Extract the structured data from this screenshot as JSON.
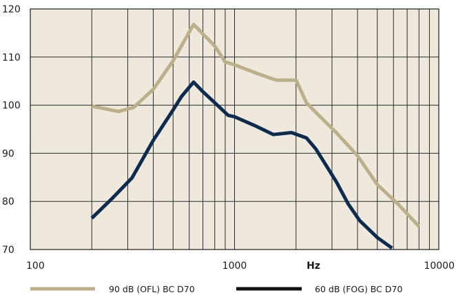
{
  "chart_data": {
    "type": "line",
    "title": "",
    "xlabel": "Hz",
    "ylabel": "",
    "x_scale": "log",
    "xlim": [
      100,
      10000
    ],
    "ylim": [
      70,
      120
    ],
    "x_ticks": [
      {
        "value": 100,
        "label": "100"
      },
      {
        "value": 1000,
        "label": "1000"
      },
      {
        "value": 10000,
        "label": "10000"
      }
    ],
    "y_ticks": [
      70,
      80,
      90,
      100,
      110,
      120
    ],
    "grid": true,
    "background": "#eee9dc",
    "legend_position": "bottom",
    "series": [
      {
        "name": "90 dB (OFL) BC D70",
        "color": "#bcb08a",
        "points": [
          [
            200,
            99.8
          ],
          [
            270,
            98.7
          ],
          [
            320,
            99.5
          ],
          [
            400,
            103.3
          ],
          [
            500,
            109.2
          ],
          [
            630,
            116.8
          ],
          [
            700,
            114.8
          ],
          [
            800,
            112.3
          ],
          [
            900,
            109.0
          ],
          [
            1000,
            108.4
          ],
          [
            1250,
            106.8
          ],
          [
            1600,
            105.2
          ],
          [
            2000,
            105.2
          ],
          [
            2250,
            100.5
          ],
          [
            2500,
            98.5
          ],
          [
            3150,
            94.3
          ],
          [
            4000,
            89.5
          ],
          [
            5000,
            83.5
          ],
          [
            6300,
            79.5
          ],
          [
            8000,
            74.8
          ]
        ]
      },
      {
        "name": "60 dB (FOG) BC D70",
        "color": "#0d2b4e",
        "points": [
          [
            200,
            76.5
          ],
          [
            250,
            80.5
          ],
          [
            315,
            84.9
          ],
          [
            400,
            92.7
          ],
          [
            500,
            99.0
          ],
          [
            550,
            101.8
          ],
          [
            630,
            104.8
          ],
          [
            700,
            102.8
          ],
          [
            800,
            100.5
          ],
          [
            930,
            97.9
          ],
          [
            1000,
            97.6
          ],
          [
            1250,
            95.8
          ],
          [
            1550,
            93.9
          ],
          [
            1900,
            94.3
          ],
          [
            2250,
            93.2
          ],
          [
            2500,
            90.9
          ],
          [
            3150,
            84.1
          ],
          [
            3600,
            79.5
          ],
          [
            4100,
            76.0
          ],
          [
            5000,
            72.5
          ],
          [
            5900,
            70.3
          ]
        ]
      }
    ]
  }
}
